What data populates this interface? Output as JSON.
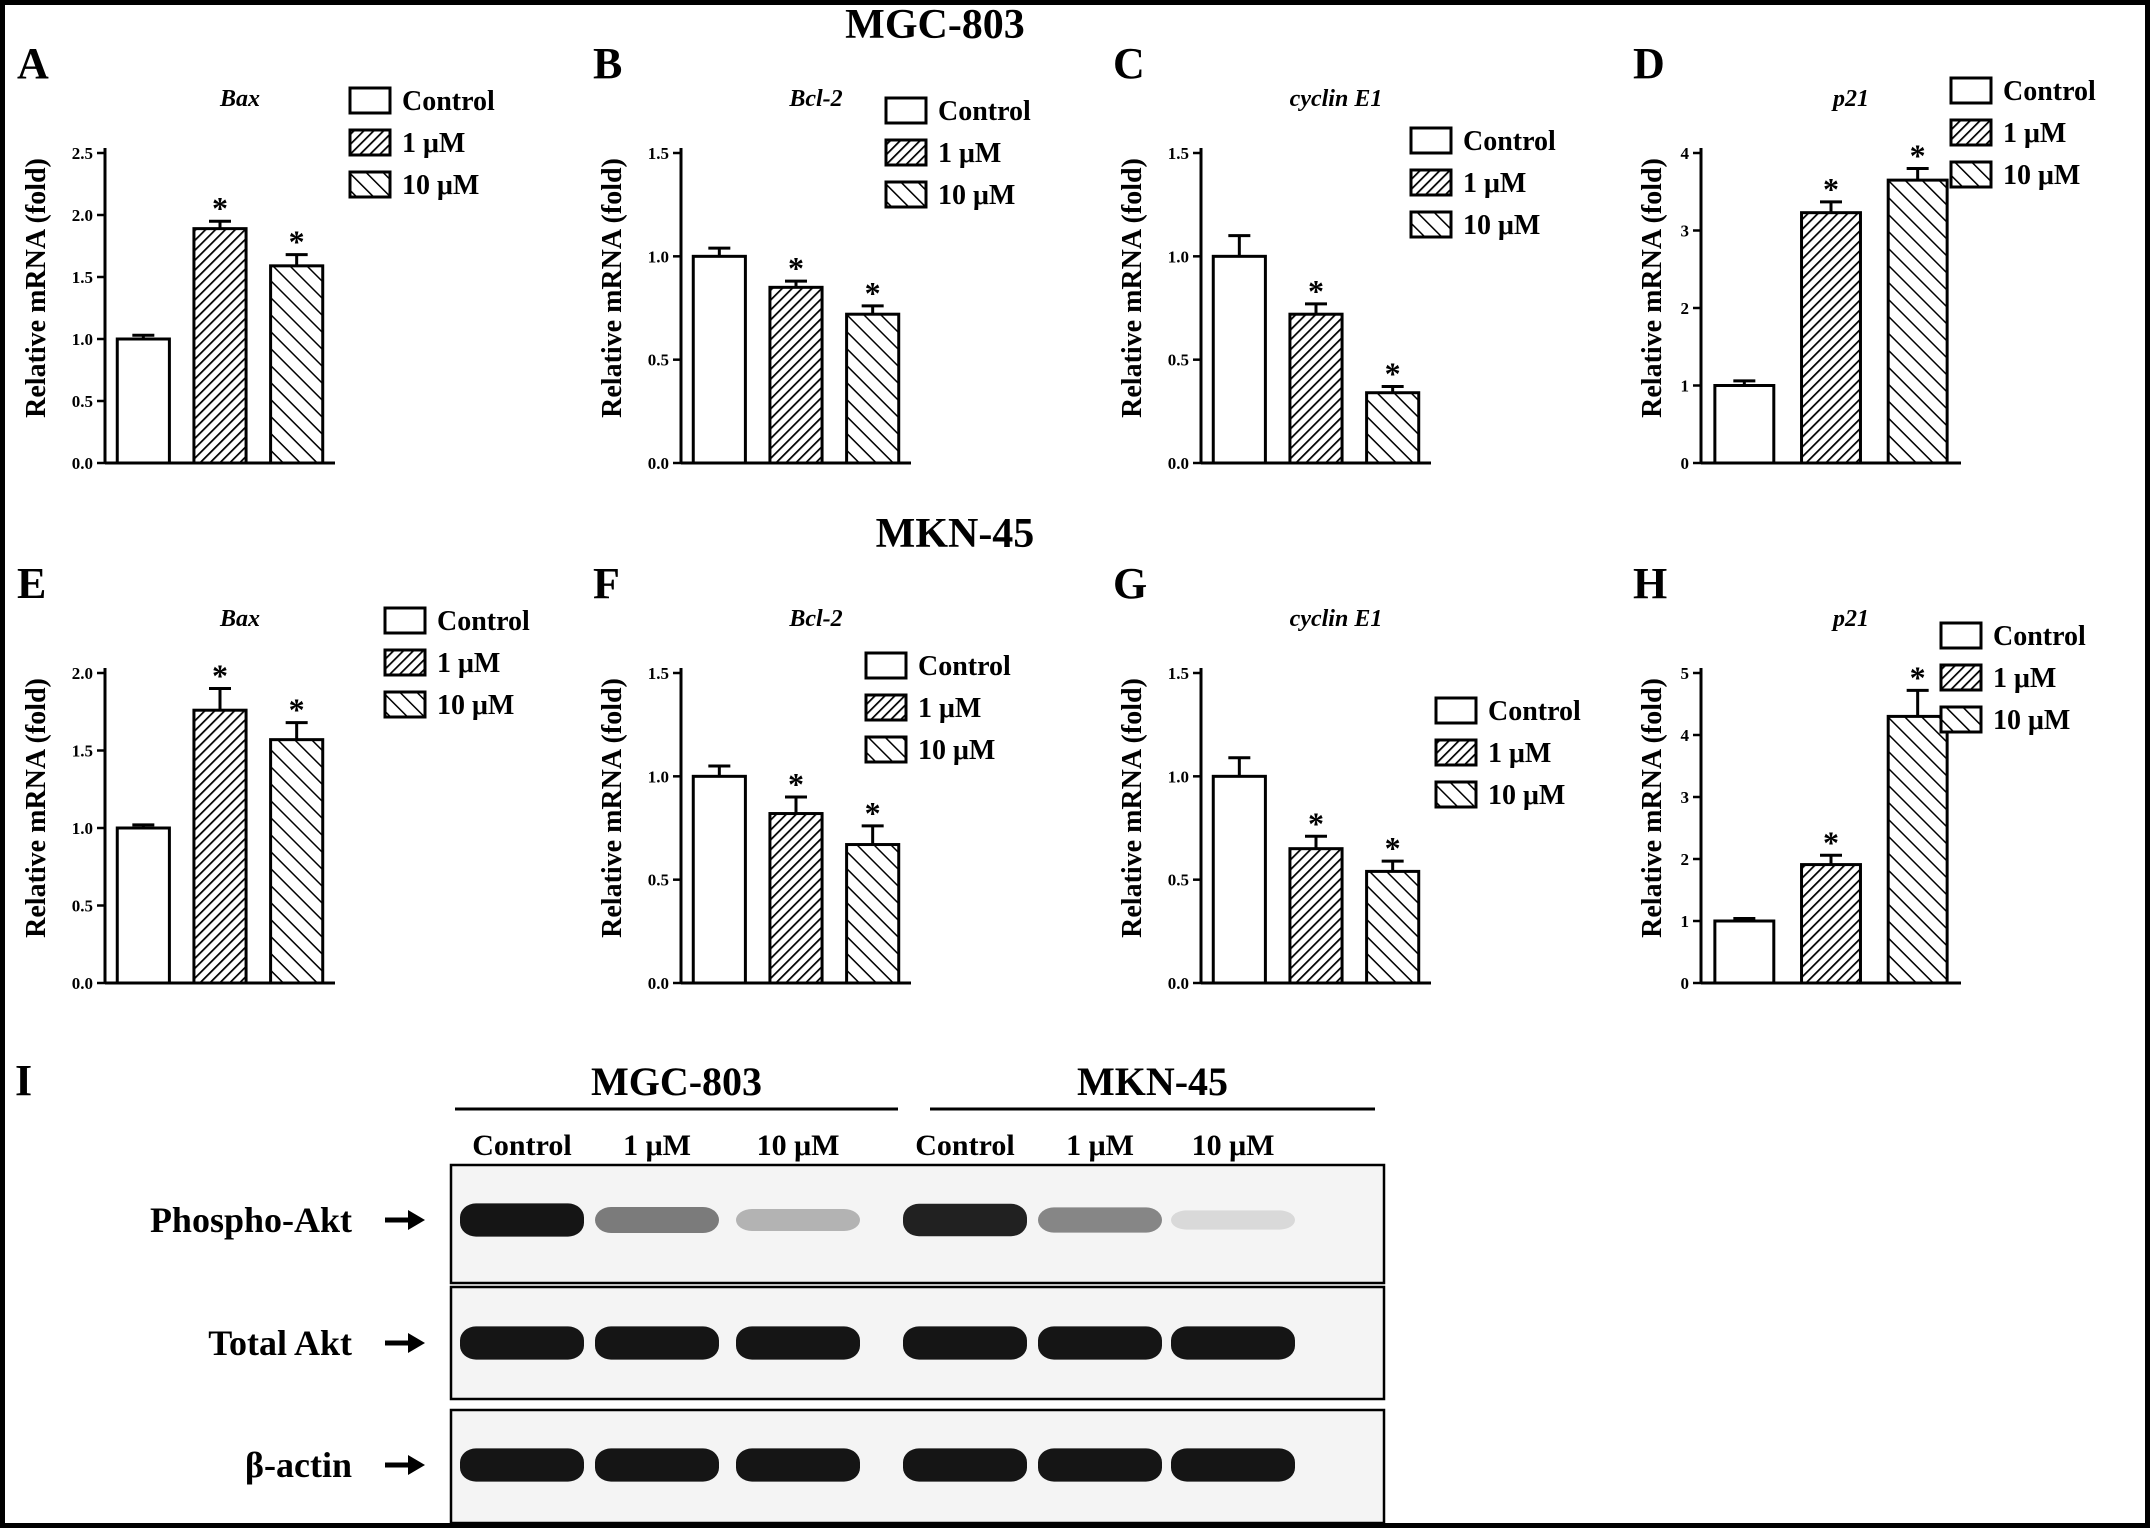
{
  "row_titles": {
    "top": "MGC-803",
    "middle": "MKN-45"
  },
  "legend_labels": [
    "Control",
    "1 μM",
    "10 μM"
  ],
  "significance_marker": "*",
  "chart_data": [
    {
      "panel": "A",
      "type": "bar",
      "title": "Bax",
      "ylabel": "Relative mRNA (fold)",
      "categories": [
        "Control",
        "1 μM",
        "10 μM"
      ],
      "values": [
        1.0,
        1.89,
        1.59
      ],
      "errors": [
        0.03,
        0.06,
        0.09
      ],
      "significant": [
        false,
        true,
        true
      ],
      "ylim": [
        0,
        2.5
      ],
      "yticks": [
        "0.0",
        "0.5",
        "1.0",
        "1.5",
        "2.0",
        "2.5"
      ]
    },
    {
      "panel": "B",
      "type": "bar",
      "title": "Bcl-2",
      "ylabel": "Relative mRNA (fold)",
      "categories": [
        "Control",
        "1 μM",
        "10 μM"
      ],
      "values": [
        1.0,
        0.85,
        0.72
      ],
      "errors": [
        0.04,
        0.03,
        0.04
      ],
      "significant": [
        false,
        true,
        true
      ],
      "ylim": [
        0,
        1.5
      ],
      "yticks": [
        "0.0",
        "0.5",
        "1.0",
        "1.5"
      ]
    },
    {
      "panel": "C",
      "type": "bar",
      "title": "cyclin E1",
      "ylabel": "Relative mRNA (fold)",
      "categories": [
        "Control",
        "1 μM",
        "10 μM"
      ],
      "values": [
        1.0,
        0.72,
        0.34
      ],
      "errors": [
        0.1,
        0.05,
        0.03
      ],
      "significant": [
        false,
        true,
        true
      ],
      "ylim": [
        0,
        1.5
      ],
      "yticks": [
        "0.0",
        "0.5",
        "1.0",
        "1.5"
      ]
    },
    {
      "panel": "D",
      "type": "bar",
      "title": "p21",
      "ylabel": "Relative mRNA (fold)",
      "categories": [
        "Control",
        "1 μM",
        "10 μM"
      ],
      "values": [
        1.0,
        3.23,
        3.65
      ],
      "errors": [
        0.06,
        0.14,
        0.15
      ],
      "significant": [
        false,
        true,
        true
      ],
      "ylim": [
        0,
        4
      ],
      "yticks": [
        "0",
        "1",
        "2",
        "3",
        "4"
      ]
    },
    {
      "panel": "E",
      "type": "bar",
      "title": "Bax",
      "ylabel": "Relative mRNA (fold)",
      "categories": [
        "Control",
        "1 μM",
        "10 μM"
      ],
      "values": [
        1.0,
        1.76,
        1.57
      ],
      "errors": [
        0.02,
        0.14,
        0.11
      ],
      "significant": [
        false,
        true,
        true
      ],
      "ylim": [
        0,
        2.0
      ],
      "yticks": [
        "0.0",
        "0.5",
        "1.0",
        "1.5",
        "2.0"
      ]
    },
    {
      "panel": "F",
      "type": "bar",
      "title": "Bcl-2",
      "ylabel": "Relative mRNA (fold)",
      "categories": [
        "Control",
        "1 μM",
        "10 μM"
      ],
      "values": [
        1.0,
        0.82,
        0.67
      ],
      "errors": [
        0.05,
        0.08,
        0.09
      ],
      "significant": [
        false,
        true,
        true
      ],
      "ylim": [
        0,
        1.5
      ],
      "yticks": [
        "0.0",
        "0.5",
        "1.0",
        "1.5"
      ]
    },
    {
      "panel": "G",
      "type": "bar",
      "title": "cyclin E1",
      "ylabel": "Relative mRNA (fold)",
      "categories": [
        "Control",
        "1 μM",
        "10 μM"
      ],
      "values": [
        1.0,
        0.65,
        0.54
      ],
      "errors": [
        0.09,
        0.06,
        0.05
      ],
      "significant": [
        false,
        true,
        true
      ],
      "ylim": [
        0,
        1.5
      ],
      "yticks": [
        "0.0",
        "0.5",
        "1.0",
        "1.5"
      ]
    },
    {
      "panel": "H",
      "type": "bar",
      "title": "p21",
      "ylabel": "Relative mRNA (fold)",
      "categories": [
        "Control",
        "1 μM",
        "10 μM"
      ],
      "values": [
        1.0,
        1.91,
        4.3
      ],
      "errors": [
        0.04,
        0.15,
        0.42
      ],
      "significant": [
        false,
        true,
        true
      ],
      "ylim": [
        0,
        5
      ],
      "yticks": [
        "0",
        "1",
        "2",
        "3",
        "4",
        "5"
      ]
    }
  ],
  "western_blot": {
    "panel": "I",
    "groups": [
      "MGC-803",
      "MKN-45"
    ],
    "lanes": [
      "Control",
      "1 μM",
      "10 μM",
      "Control",
      "1 μM",
      "10 μM"
    ],
    "rows": [
      {
        "label": "Phospho-Akt",
        "intensity": [
          0.95,
          0.5,
          0.25,
          0.9,
          0.45,
          0.08
        ]
      },
      {
        "label": "Total Akt",
        "intensity": [
          0.95,
          0.95,
          0.95,
          0.95,
          0.95,
          0.95
        ]
      },
      {
        "label": "β-actin",
        "intensity": [
          0.95,
          0.95,
          0.95,
          0.95,
          0.95,
          0.95
        ]
      }
    ]
  }
}
